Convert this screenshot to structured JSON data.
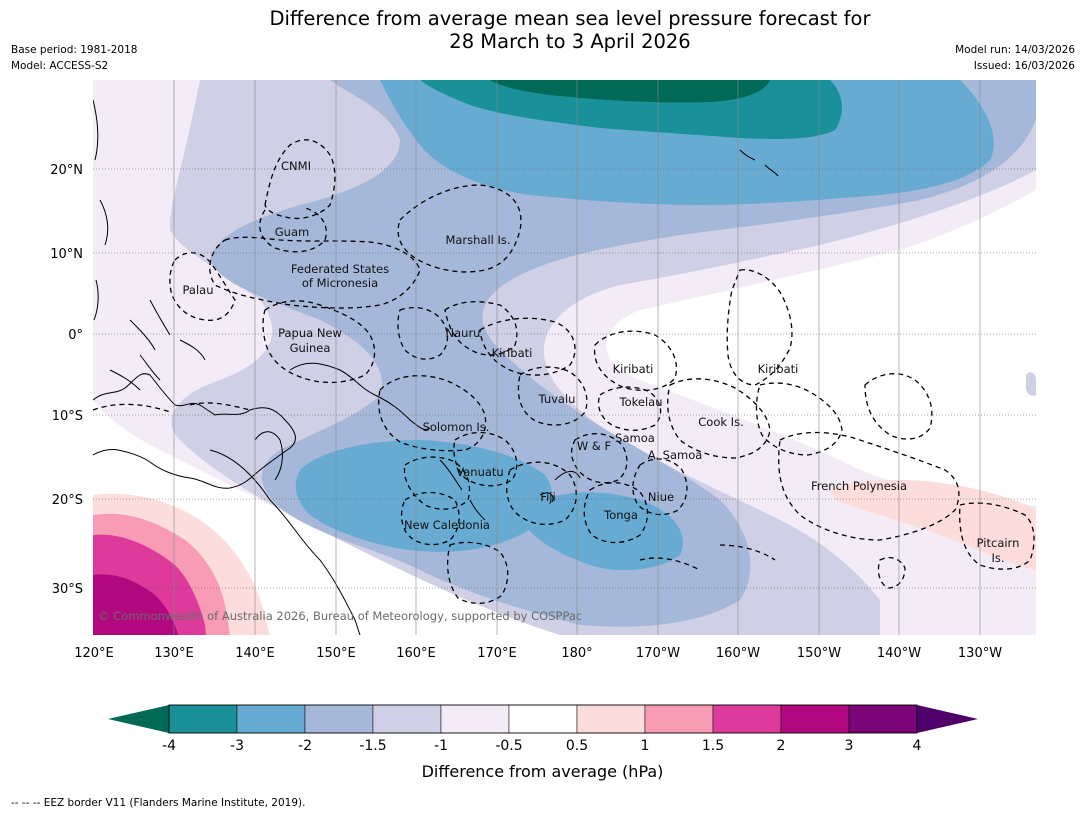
{
  "header": {
    "title_line1": "Difference from average mean sea level pressure forecast for",
    "title_line2": "28 March to 3 April 2026",
    "base_period": "Base period: 1981-2018",
    "model": "Model: ACCESS-S2",
    "model_run": "Model run: 14/03/2026",
    "issued": "Issued: 16/03/2026"
  },
  "map": {
    "lat_labels": [
      "20°N",
      "10°N",
      "0°",
      "10°S",
      "20°S",
      "30°S"
    ],
    "lon_labels": [
      "120°E",
      "130°E",
      "140°E",
      "150°E",
      "160°E",
      "170°E",
      "180°",
      "170°W",
      "160°W",
      "150°W",
      "140°W",
      "130°W"
    ],
    "region_labels": [
      "CNMI",
      "Guam",
      "Marshall Is.",
      "Federated States",
      "of Micronesia",
      "Palau",
      "Papua New",
      "Guinea",
      "Nauru",
      "Kiribati",
      "Kiribati",
      "Kiribati",
      "Tuvalu",
      "Tokelau",
      "Solomon Is.",
      "Cook Is.",
      "W & F",
      "Samoa",
      "A. Samoa",
      "Vanuatu",
      "Fiji",
      "Niue",
      "French Polynesia",
      "Tonga",
      "New Caledonia",
      "Pitcairn",
      "Is."
    ],
    "copyright": "© Commonwealth of Australia 2026, Bureau of Meteorology, supported by COSPPac"
  },
  "colorbar": {
    "ticks": [
      "-4",
      "-3",
      "-2",
      "-1.5",
      "-1",
      "-0.5",
      "0.5",
      "1",
      "1.5",
      "2",
      "3",
      "4"
    ],
    "colors": [
      "#1a9199",
      "#67abd2",
      "#a6b8d9",
      "#cfd0e5",
      "#f3ebf5",
      "#ffffff",
      "#fddcdc",
      "#f89cb6",
      "#de3a9c",
      "#b1087f",
      "#7b0577"
    ],
    "under_color": "#006a56",
    "over_color": "#4f006b",
    "title": "Difference from average (hPa)"
  },
  "footer": {
    "legend": "--  --  -- EEZ border V11 (Flanders Marine Institute, 2019)."
  }
}
